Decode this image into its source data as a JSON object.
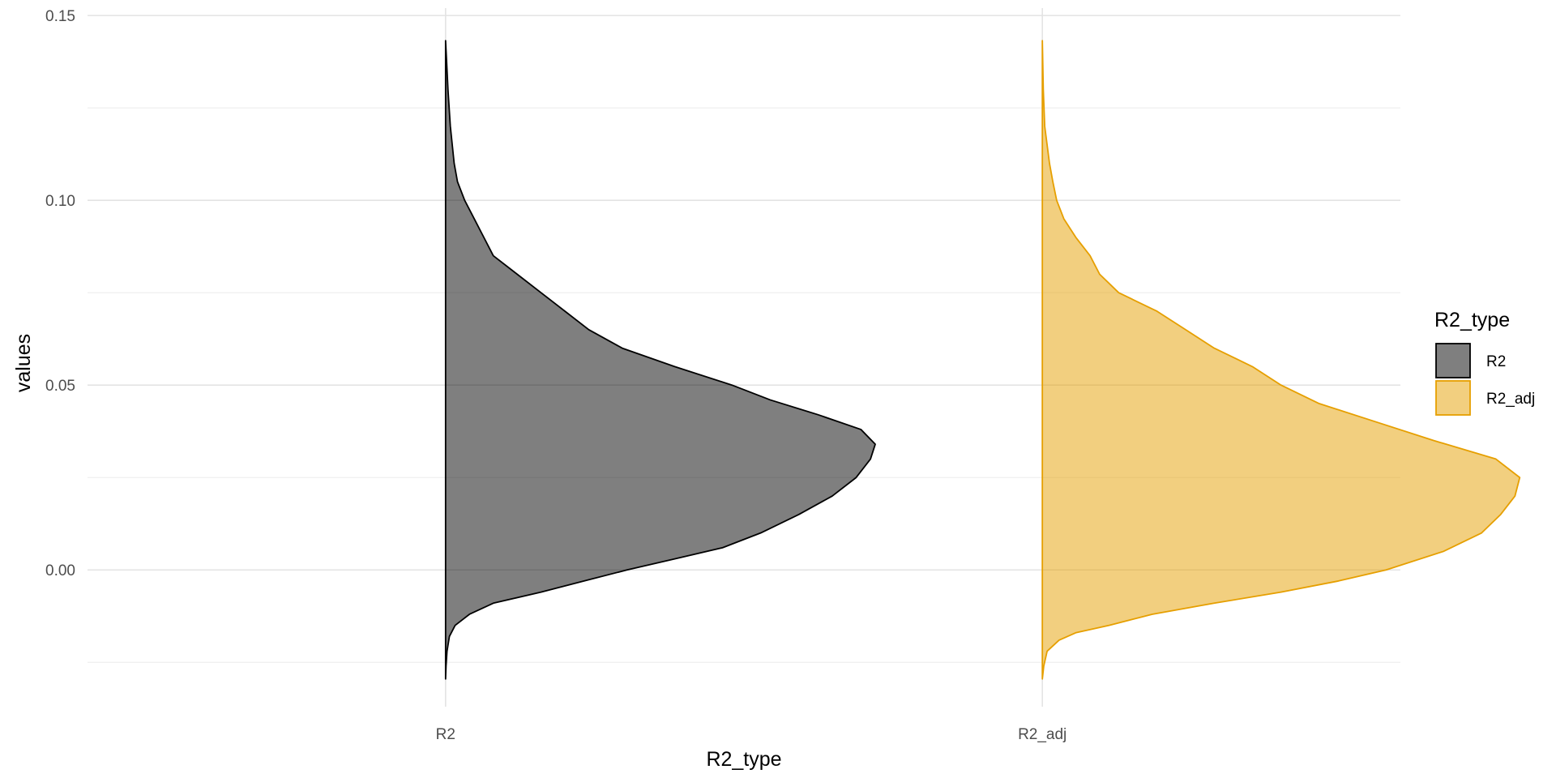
{
  "chart_data": {
    "type": "half-violin",
    "title": "",
    "xlabel": "R2_type",
    "ylabel": "values",
    "categories": [
      "R2",
      "R2_adj"
    ],
    "ylim": [
      -0.037,
      0.152
    ],
    "y_ticks": [
      0.0,
      0.05,
      0.1,
      0.15
    ],
    "y_tick_labels": [
      "0.00",
      "0.05",
      "0.10",
      "0.15"
    ],
    "grid": true,
    "legend": {
      "title": "R2_type",
      "position": "right",
      "entries": [
        "R2",
        "R2_adj"
      ]
    },
    "series": [
      {
        "name": "R2",
        "fill": "#000000",
        "line": "#000000",
        "opacity": 0.5,
        "density_width_max": 0.8,
        "profile": [
          [
            -0.0295,
            0.0
          ],
          [
            -0.026,
            0.001
          ],
          [
            -0.022,
            0.003
          ],
          [
            -0.018,
            0.008
          ],
          [
            -0.015,
            0.02
          ],
          [
            -0.012,
            0.05
          ],
          [
            -0.009,
            0.1
          ],
          [
            -0.006,
            0.2
          ],
          [
            -0.003,
            0.29
          ],
          [
            0.0,
            0.38
          ],
          [
            0.003,
            0.48
          ],
          [
            0.006,
            0.58
          ],
          [
            0.01,
            0.66
          ],
          [
            0.015,
            0.74
          ],
          [
            0.02,
            0.81
          ],
          [
            0.025,
            0.86
          ],
          [
            0.03,
            0.89
          ],
          [
            0.034,
            0.9
          ],
          [
            0.038,
            0.87
          ],
          [
            0.042,
            0.78
          ],
          [
            0.046,
            0.68
          ],
          [
            0.05,
            0.6
          ],
          [
            0.055,
            0.48
          ],
          [
            0.06,
            0.37
          ],
          [
            0.065,
            0.3
          ],
          [
            0.07,
            0.25
          ],
          [
            0.075,
            0.2
          ],
          [
            0.08,
            0.15
          ],
          [
            0.085,
            0.1
          ],
          [
            0.09,
            0.08
          ],
          [
            0.095,
            0.06
          ],
          [
            0.1,
            0.04
          ],
          [
            0.105,
            0.025
          ],
          [
            0.11,
            0.018
          ],
          [
            0.12,
            0.01
          ],
          [
            0.13,
            0.005
          ],
          [
            0.138,
            0.002
          ],
          [
            0.1432,
            0.0
          ]
        ]
      },
      {
        "name": "R2_adj",
        "fill": "#E69F00",
        "line": "#E69F00",
        "opacity": 0.5,
        "density_width_max": 0.8,
        "profile": [
          [
            -0.0295,
            0.0
          ],
          [
            -0.026,
            0.003
          ],
          [
            -0.022,
            0.01
          ],
          [
            -0.019,
            0.035
          ],
          [
            -0.017,
            0.07
          ],
          [
            -0.015,
            0.14
          ],
          [
            -0.012,
            0.23
          ],
          [
            -0.009,
            0.36
          ],
          [
            -0.006,
            0.5
          ],
          [
            -0.003,
            0.62
          ],
          [
            0.0,
            0.72
          ],
          [
            0.005,
            0.84
          ],
          [
            0.01,
            0.92
          ],
          [
            0.015,
            0.96
          ],
          [
            0.02,
            0.99
          ],
          [
            0.025,
            1.0
          ],
          [
            0.03,
            0.95
          ],
          [
            0.035,
            0.82
          ],
          [
            0.04,
            0.7
          ],
          [
            0.045,
            0.58
          ],
          [
            0.05,
            0.5
          ],
          [
            0.055,
            0.44
          ],
          [
            0.06,
            0.36
          ],
          [
            0.065,
            0.3
          ],
          [
            0.07,
            0.24
          ],
          [
            0.075,
            0.16
          ],
          [
            0.08,
            0.12
          ],
          [
            0.085,
            0.1
          ],
          [
            0.09,
            0.07
          ],
          [
            0.095,
            0.045
          ],
          [
            0.1,
            0.03
          ],
          [
            0.105,
            0.022
          ],
          [
            0.11,
            0.015
          ],
          [
            0.12,
            0.005
          ],
          [
            0.13,
            0.002
          ],
          [
            0.1432,
            0.0
          ]
        ]
      }
    ]
  }
}
